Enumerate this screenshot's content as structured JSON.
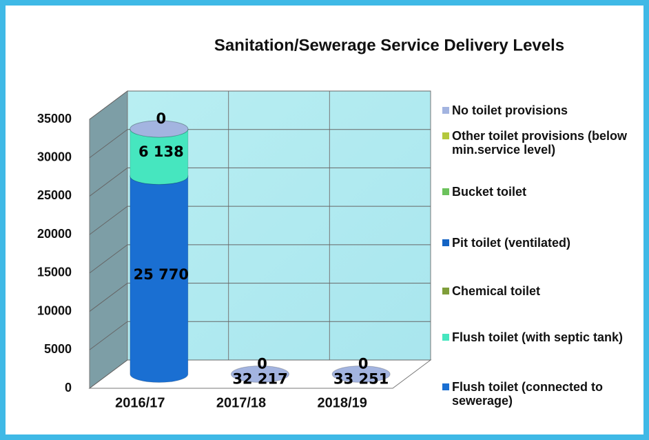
{
  "chart_data": {
    "type": "bar3d_cylinder_stacked",
    "title": "Sanitation/Sewerage Service Delivery Levels",
    "categories": [
      "2016/17",
      "2017/18",
      "2018/19"
    ],
    "series": [
      {
        "name": "No toilet provisions",
        "color": "#a3b4e0",
        "values": [
          0,
          0,
          0
        ]
      },
      {
        "name": "Other toilet provisions (below min.service level)",
        "color": "#b4c83c",
        "values": [
          null,
          null,
          null
        ]
      },
      {
        "name": "Bucket toilet",
        "color": "#6cc25c",
        "values": [
          null,
          null,
          null
        ]
      },
      {
        "name": "Pit toilet (ventilated)",
        "color": "#1464c4",
        "values": [
          null,
          null,
          null
        ]
      },
      {
        "name": "Chemical toilet",
        "color": "#7f9e3a",
        "values": [
          null,
          null,
          null
        ]
      },
      {
        "name": "Flush toilet (with septic tank)",
        "color": "#46e6bf",
        "values": [
          6138,
          null,
          null
        ],
        "value_labels": [
          "6 138",
          null,
          null
        ]
      },
      {
        "name": "Flush toilet (connected to sewerage)",
        "color": "#1a6fd2",
        "values": [
          25770,
          null,
          null
        ],
        "value_labels": [
          "25 770",
          null,
          null
        ]
      }
    ],
    "annotations": [
      {
        "x": "2017/18",
        "text": "32 217"
      },
      {
        "x": "2018/19",
        "text": "33 251"
      }
    ],
    "ylim": [
      0,
      35000
    ],
    "yticks": [
      0,
      5000,
      10000,
      15000,
      20000,
      25000,
      30000,
      35000
    ],
    "grid": true
  }
}
